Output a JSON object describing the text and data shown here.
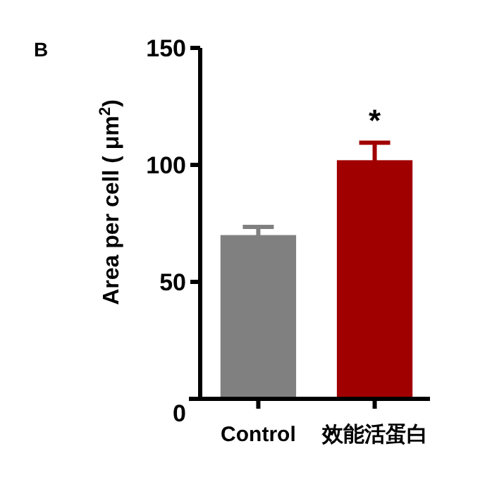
{
  "chart_data": {
    "type": "bar",
    "title": "B",
    "ylabel": "Area per cell ( μm$^{2}$)",
    "categories": [
      "Control",
      "效能活蛋白"
    ],
    "values": [
      70,
      102
    ],
    "errors": [
      3.5,
      7.5
    ],
    "colors": [
      "#808080",
      "#a00000"
    ],
    "ylim": [
      0,
      150
    ],
    "yticks": [
      0,
      50,
      100,
      150
    ],
    "grid": false,
    "annotations": [
      "*"
    ]
  }
}
